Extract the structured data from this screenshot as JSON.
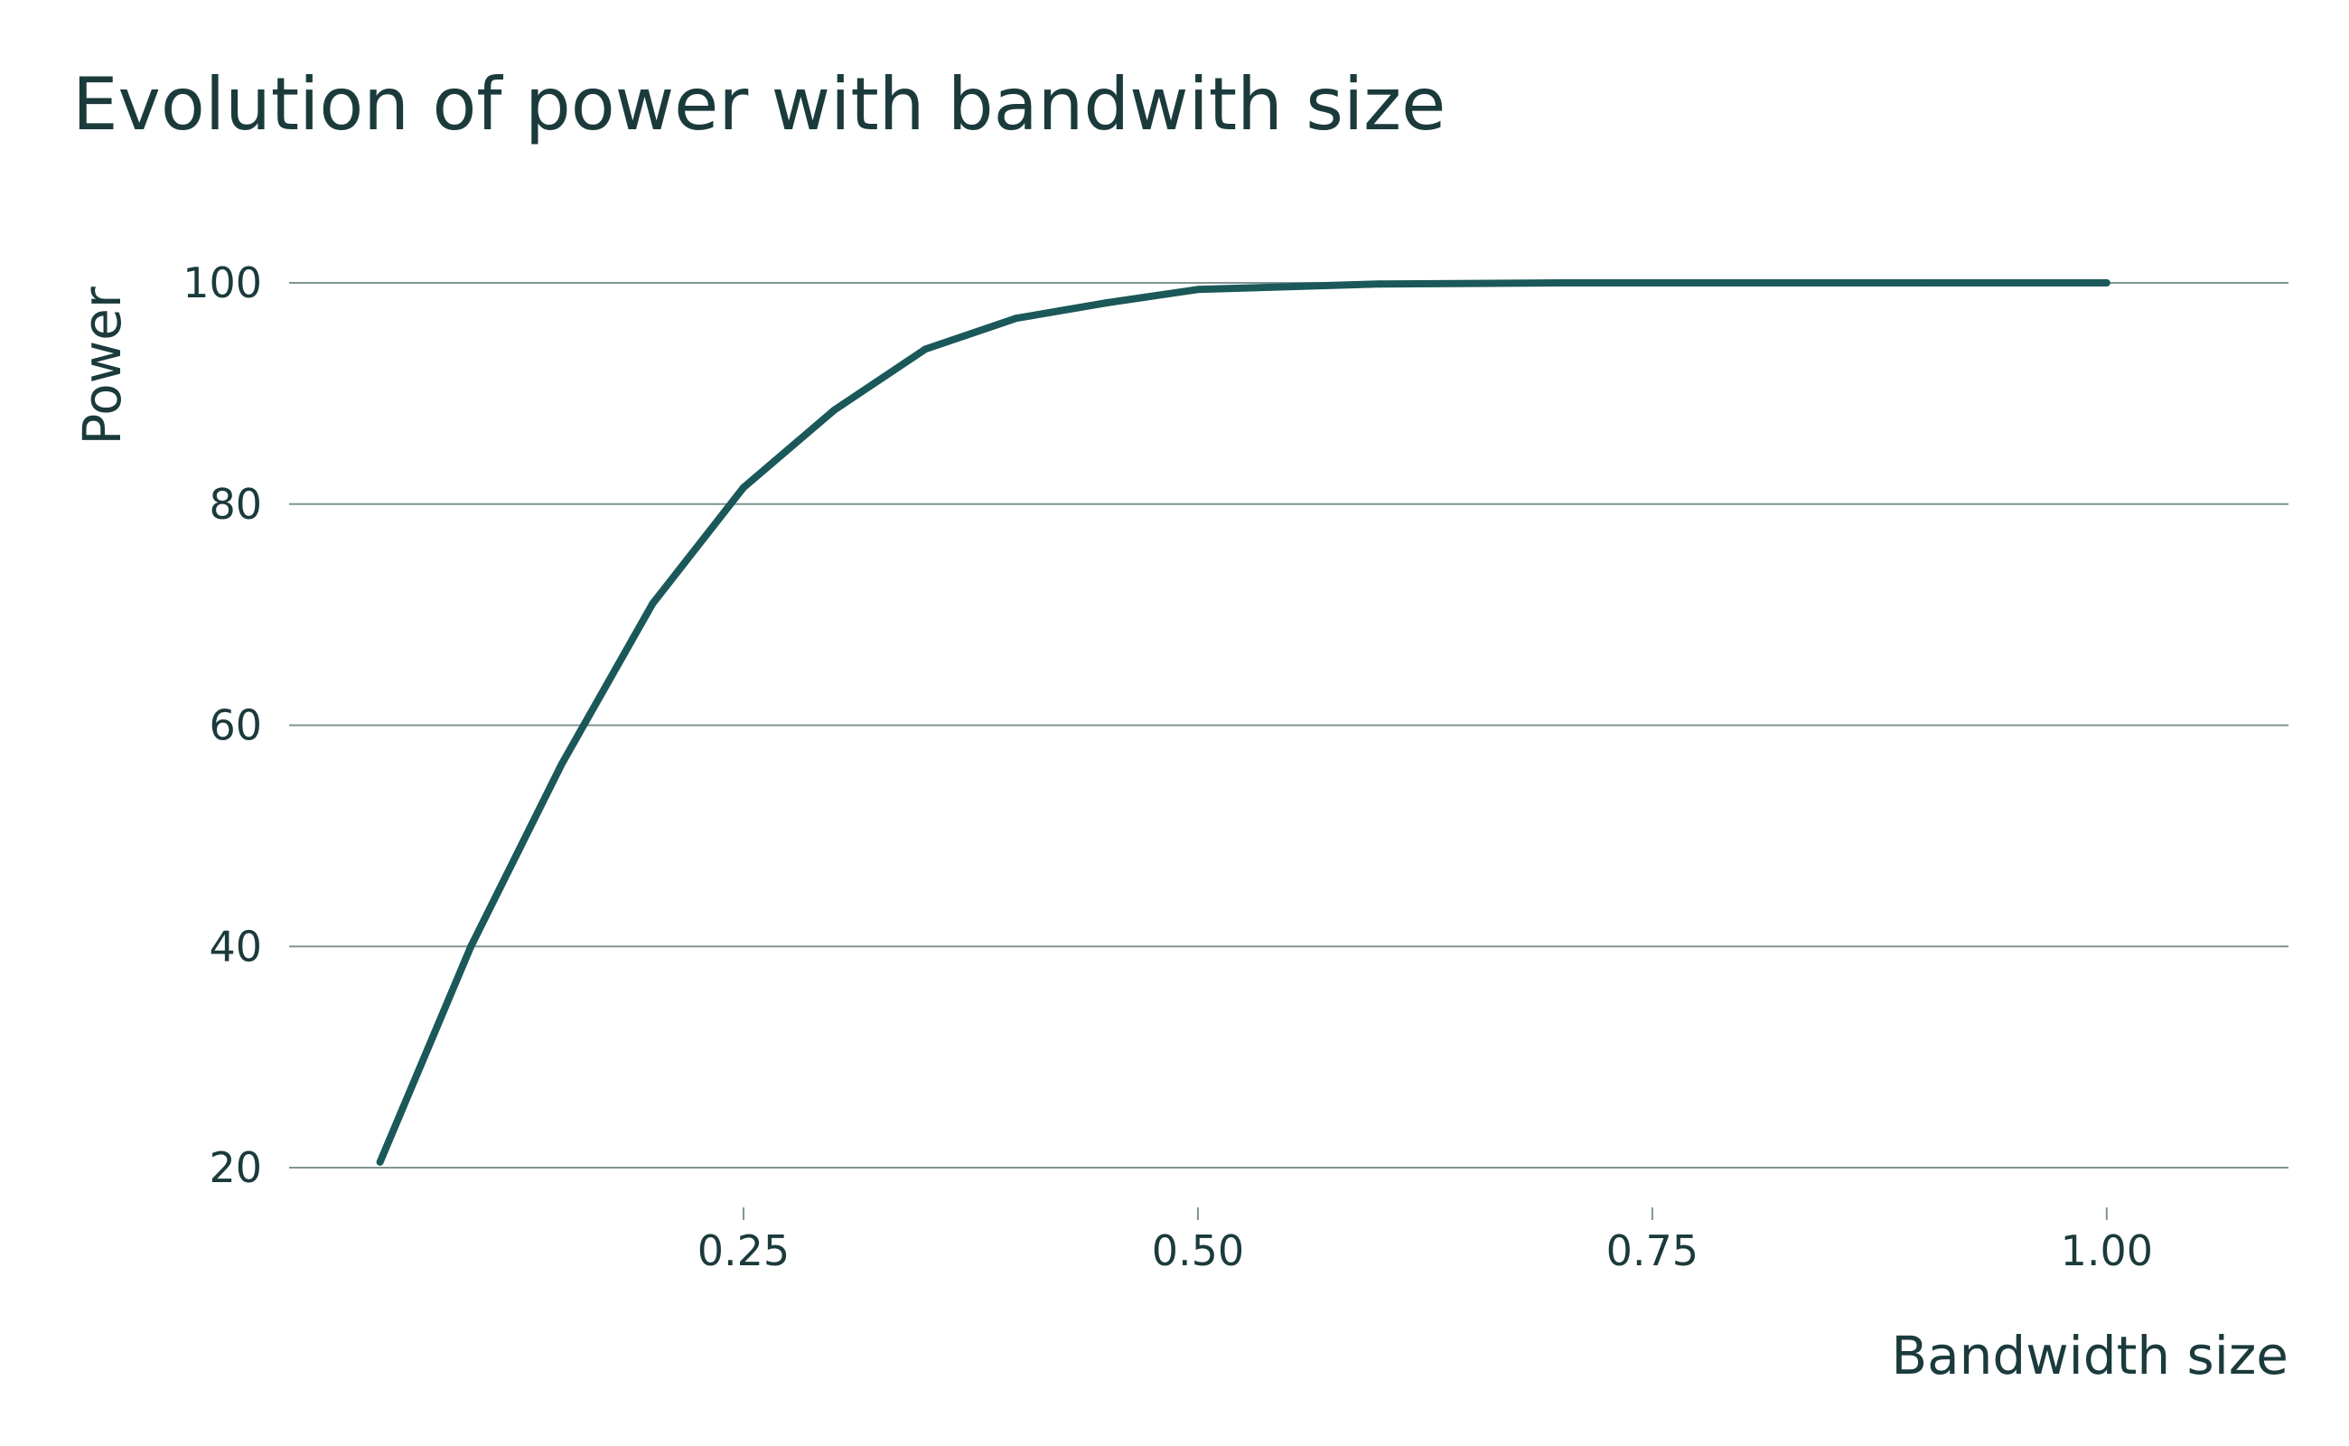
{
  "chart_data": {
    "type": "line",
    "title": "Evolution of power with bandwith size",
    "xlabel": "Bandwidth size",
    "ylabel": "Power",
    "xlim": [
      0.0,
      1.1
    ],
    "ylim": [
      20,
      100
    ],
    "x_ticks": [
      0.25,
      0.5,
      0.75,
      1.0
    ],
    "x_tick_labels": [
      "0.25",
      "0.50",
      "0.75",
      "1.00"
    ],
    "y_ticks": [
      20,
      40,
      60,
      80,
      100
    ],
    "y_tick_labels": [
      "20",
      "40",
      "60",
      "80",
      "100"
    ],
    "grid": "horizontal",
    "line_color": "#1b5859",
    "series": [
      {
        "x": [
          0.05,
          0.1,
          0.15,
          0.2,
          0.25,
          0.3,
          0.35,
          0.4,
          0.45,
          0.5,
          0.6,
          0.7,
          0.8,
          0.9,
          1.0
        ],
        "values": [
          20.5,
          40.0,
          56.5,
          71.0,
          81.5,
          88.5,
          94.0,
          96.8,
          98.2,
          99.4,
          99.9,
          100.0,
          100.0,
          100.0,
          100.0
        ]
      }
    ]
  }
}
